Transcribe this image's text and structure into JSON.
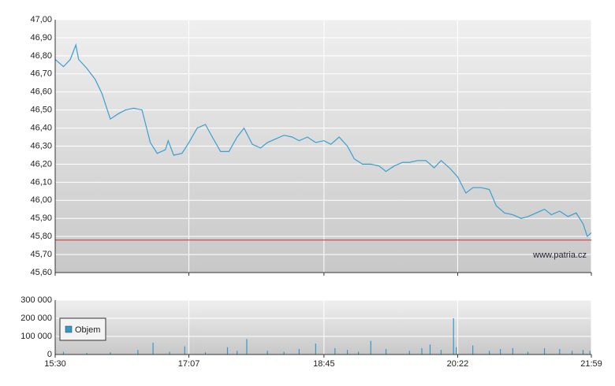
{
  "chart_data": [
    {
      "type": "line",
      "color": "#3a9fd0",
      "watermark": "www.patria.cz",
      "reference_value": 45.78,
      "reference_color": "#cc3333",
      "x": [
        930,
        936,
        941,
        945,
        947,
        953,
        959,
        964,
        970,
        976,
        981,
        987,
        993,
        999,
        1004,
        1010,
        1012,
        1016,
        1022,
        1027,
        1033,
        1039,
        1044,
        1050,
        1056,
        1062,
        1067,
        1073,
        1079,
        1084,
        1090,
        1096,
        1102,
        1107,
        1113,
        1119,
        1125,
        1130,
        1136,
        1142,
        1147,
        1153,
        1159,
        1165,
        1170,
        1176,
        1182,
        1187,
        1193,
        1199,
        1205,
        1210,
        1216,
        1222,
        1228,
        1233,
        1239,
        1245,
        1250,
        1256,
        1262,
        1268,
        1273,
        1279,
        1285,
        1290,
        1296,
        1302,
        1308,
        1313,
        1316,
        1319
      ],
      "values": [
        46.78,
        46.74,
        46.78,
        46.86,
        46.78,
        46.73,
        46.67,
        46.59,
        46.45,
        46.48,
        46.5,
        46.51,
        46.5,
        46.32,
        46.26,
        46.28,
        46.33,
        46.25,
        46.26,
        46.32,
        46.4,
        46.42,
        46.35,
        46.27,
        46.27,
        46.35,
        46.4,
        46.31,
        46.29,
        46.32,
        46.34,
        46.36,
        46.35,
        46.33,
        46.35,
        46.32,
        46.33,
        46.31,
        46.35,
        46.3,
        46.23,
        46.2,
        46.2,
        46.19,
        46.16,
        46.19,
        46.21,
        46.21,
        46.22,
        46.22,
        46.18,
        46.22,
        46.18,
        46.13,
        46.04,
        46.07,
        46.07,
        46.06,
        45.97,
        45.93,
        45.92,
        45.9,
        45.91,
        45.93,
        45.95,
        45.92,
        45.94,
        45.91,
        45.93,
        45.87,
        45.8,
        45.82
      ],
      "xlim": [
        930,
        1319
      ],
      "ylim": [
        45.6,
        47.0
      ],
      "yticks": [
        {
          "value": 47.0,
          "label": "47,00"
        },
        {
          "value": 46.9,
          "label": "46,90"
        },
        {
          "value": 46.8,
          "label": "46,80"
        },
        {
          "value": 46.7,
          "label": "46,70"
        },
        {
          "value": 46.6,
          "label": "46,60"
        },
        {
          "value": 46.5,
          "label": "46,50"
        },
        {
          "value": 46.4,
          "label": "46,40"
        },
        {
          "value": 46.3,
          "label": "46,30"
        },
        {
          "value": 46.2,
          "label": "46,20"
        },
        {
          "value": 46.1,
          "label": "46,10"
        },
        {
          "value": 46.0,
          "label": "46,00"
        },
        {
          "value": 45.9,
          "label": "45,90"
        },
        {
          "value": 45.8,
          "label": "45,80"
        },
        {
          "value": 45.7,
          "label": "45,70"
        },
        {
          "value": 45.6,
          "label": "45,60"
        }
      ],
      "grid": true
    },
    {
      "type": "bar",
      "legend": "upper left",
      "x": [
        936,
        953,
        970,
        990,
        1001,
        1013,
        1024,
        1039,
        1055,
        1062,
        1069,
        1084,
        1096,
        1107,
        1119,
        1133,
        1142,
        1150,
        1159,
        1170,
        1187,
        1196,
        1202,
        1210,
        1219,
        1221,
        1233,
        1245,
        1253,
        1262,
        1273,
        1285,
        1296,
        1305,
        1313,
        1318
      ],
      "series": [
        {
          "name": "Objem",
          "color": "#3399cc",
          "values": [
            15000,
            8000,
            12000,
            25000,
            65000,
            15000,
            45000,
            12000,
            40000,
            20000,
            85000,
            20000,
            15000,
            30000,
            60000,
            35000,
            25000,
            15000,
            75000,
            30000,
            20000,
            35000,
            55000,
            25000,
            200000,
            40000,
            50000,
            20000,
            30000,
            35000,
            15000,
            35000,
            30000,
            20000,
            25000,
            20000
          ]
        }
      ],
      "xlim": [
        930,
        1319
      ],
      "ylim": [
        0,
        300000
      ],
      "xticks": [
        {
          "value": 930,
          "label": "15:30"
        },
        {
          "value": 1027,
          "label": "17:07"
        },
        {
          "value": 1125,
          "label": "18:45"
        },
        {
          "value": 1222,
          "label": "20:22"
        },
        {
          "value": 1319,
          "label": "21:59"
        }
      ],
      "yticks": [
        {
          "value": 300000,
          "label": "300 000"
        },
        {
          "value": 200000,
          "label": "200 000"
        },
        {
          "value": 100000,
          "label": "100 000"
        },
        0
      ],
      "grid": true
    }
  ]
}
